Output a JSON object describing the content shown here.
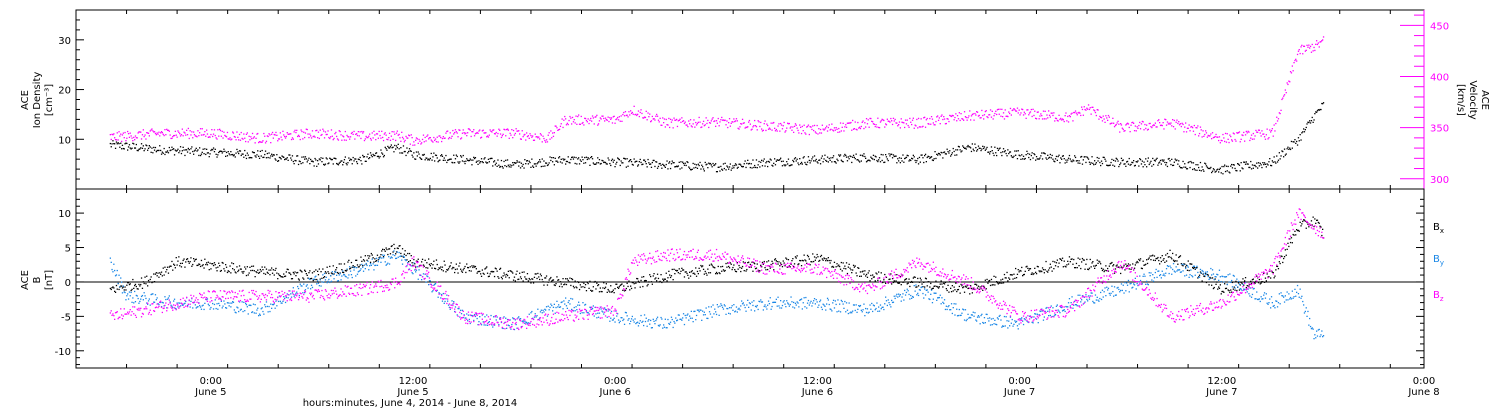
{
  "chart_data": [
    {
      "type": "scatter",
      "panel": "top",
      "ylabel_left": [
        "ACE",
        "Ion Density",
        "[cm⁻³]"
      ],
      "ylabel_right": [
        "ACE",
        "Velocity",
        "[km/s]"
      ],
      "ylim_left": [
        0,
        36
      ],
      "ylim_right": [
        290,
        465
      ],
      "left_ticks": [
        10,
        20,
        30
      ],
      "right_ticks": [
        300,
        350,
        400,
        450
      ],
      "series": [
        {
          "axis": "left",
          "color": "#000000",
          "x_hours": [
            -6,
            -3,
            0,
            3,
            6,
            9,
            11,
            12,
            15,
            18,
            21,
            24,
            27,
            30,
            33,
            36,
            39,
            42,
            45,
            48,
            51,
            54,
            57,
            60,
            63,
            64.5,
            65.5,
            66
          ],
          "y": [
            9,
            8,
            7.5,
            7,
            5.5,
            6,
            8.5,
            7,
            6,
            5,
            6,
            5.5,
            5,
            4.5,
            5.5,
            6,
            6.5,
            6,
            8.5,
            7,
            6,
            5.5,
            5.5,
            4,
            5.5,
            10,
            15,
            17
          ]
        },
        {
          "axis": "right",
          "color": "#ff00ff",
          "x_hours": [
            -6,
            -3,
            0,
            3,
            6,
            9,
            11,
            12,
            15,
            18,
            20,
            21,
            24,
            25,
            27,
            30,
            33,
            36,
            39,
            42,
            45,
            48,
            51,
            52,
            54,
            57,
            60,
            63,
            64.5,
            65.5,
            66
          ],
          "y": [
            341,
            345,
            345,
            340,
            345,
            342,
            343,
            338,
            345,
            345,
            340,
            358,
            358,
            368,
            355,
            356,
            352,
            348,
            355,
            355,
            362,
            365,
            360,
            370,
            350,
            355,
            340,
            345,
            425,
            430,
            435
          ]
        }
      ]
    },
    {
      "type": "scatter",
      "panel": "bottom",
      "ylabel_left": [
        "ACE",
        "B",
        "[nT]"
      ],
      "ylim": [
        -12.5,
        13.5
      ],
      "ticks": [
        -10,
        -5,
        0,
        5,
        10
      ],
      "zero_line": true,
      "legend": [
        "Bx",
        "By",
        "Bz"
      ],
      "series": [
        {
          "name": "Bx",
          "color": "#000000",
          "x_hours": [
            -6,
            -4,
            -2,
            0,
            3,
            6,
            9,
            11,
            12,
            15,
            18,
            21,
            24,
            27,
            30,
            33,
            36,
            39,
            42,
            45,
            48,
            51,
            54,
            57,
            60,
            63,
            64.5,
            65.5,
            66
          ],
          "y": [
            -1,
            0,
            3,
            2.5,
            1.5,
            1,
            3,
            5,
            3,
            2,
            1,
            0,
            -1,
            1,
            2,
            2.5,
            3.5,
            1,
            0,
            -1,
            1.5,
            3,
            2,
            4,
            -1,
            1,
            8,
            9,
            7
          ]
        },
        {
          "name": "By",
          "color": "#1a87e6",
          "x_hours": [
            -6,
            -5,
            -2,
            0,
            3,
            6,
            9,
            11,
            12,
            15,
            18,
            21,
            24,
            27,
            30,
            33,
            36,
            39,
            42,
            45,
            48,
            51,
            54,
            57,
            60,
            63,
            64.5,
            65.5,
            66
          ],
          "y": [
            3,
            -2,
            -3,
            -3,
            -4,
            0,
            2,
            4,
            2,
            -5,
            -6,
            -3,
            -5,
            -6,
            -4,
            -3,
            -3,
            -4,
            -1,
            -5,
            -6,
            -3,
            -1,
            2,
            1,
            -3,
            -1,
            -8,
            -7
          ]
        },
        {
          "name": "Bz",
          "color": "#ff00ff",
          "x_hours": [
            -6,
            -4,
            -2,
            0,
            3,
            6,
            9,
            11,
            12,
            15,
            18,
            21,
            24,
            25,
            27,
            30,
            33,
            36,
            39,
            42,
            45,
            48,
            51,
            54,
            57,
            60,
            63,
            64.5,
            65.5,
            66
          ],
          "y": [
            -5,
            -4,
            -3,
            -2,
            -2,
            -2,
            -1,
            0,
            3,
            -5,
            -6,
            -5,
            -4,
            3,
            4,
            4,
            2,
            2,
            -1,
            3,
            0,
            -5,
            -4,
            3,
            -5,
            -3,
            2,
            10,
            8,
            7
          ]
        }
      ]
    }
  ],
  "x_axis": {
    "xlim_hours": [
      -8,
      72
    ],
    "ticks": [
      {
        "hours": 0,
        "line1": "0:00",
        "line2": "June 5"
      },
      {
        "hours": 12,
        "line1": "12:00",
        "line2": "June 5"
      },
      {
        "hours": 24,
        "line1": "0:00",
        "line2": "June 6"
      },
      {
        "hours": 36,
        "line1": "12:00",
        "line2": "June 6"
      },
      {
        "hours": 48,
        "line1": "0:00",
        "line2": "June 7"
      },
      {
        "hours": 60,
        "line1": "12:00",
        "line2": "June 7"
      },
      {
        "hours": 72,
        "line1": "0:00",
        "line2": "June 8"
      }
    ],
    "title": "hours:minutes, June  4, 2014 - June  8, 2014"
  }
}
